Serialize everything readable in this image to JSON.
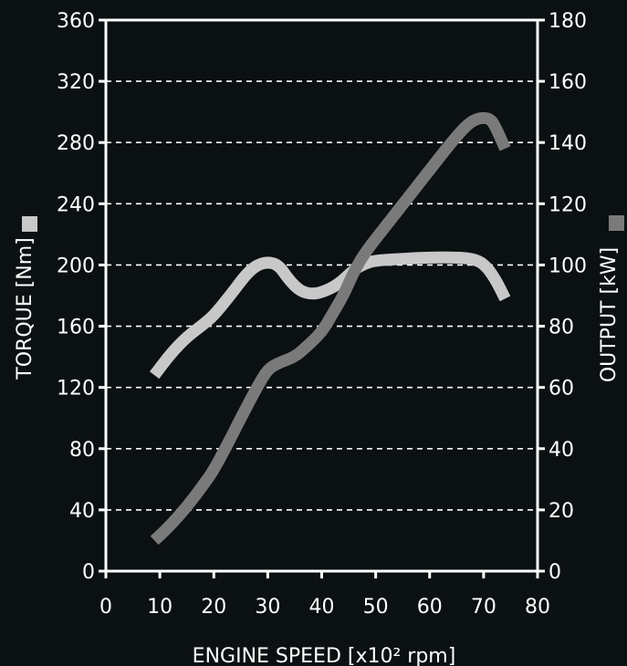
{
  "chart_data": {
    "type": "line",
    "title": "",
    "xlabel": "ENGINE SPEED [x10² rpm]",
    "ylabel_left": "TORQUE [Nm]",
    "ylabel_right": "OUTPUT [kW]",
    "xlim": [
      0,
      80
    ],
    "ylim_left": [
      0,
      360
    ],
    "ylim_right": [
      0,
      180
    ],
    "x_ticks": [
      0,
      10,
      20,
      30,
      40,
      50,
      60,
      70,
      80
    ],
    "y_ticks_left": [
      0,
      40,
      80,
      120,
      160,
      200,
      240,
      280,
      320,
      360
    ],
    "y_ticks_right": [
      0,
      20,
      40,
      60,
      80,
      100,
      120,
      140,
      160,
      180
    ],
    "grid": "horizontal dashed",
    "colors": {
      "background": "#0b1012",
      "axes": "#ffffff",
      "grid": "#ffffff",
      "torque": "#c8c8c8",
      "output": "#7a7a7a"
    },
    "series": [
      {
        "axis": "left",
        "color": "#c8c8c8",
        "points": [
          [
            9,
            128
          ],
          [
            12,
            142
          ],
          [
            15,
            153
          ],
          [
            18,
            161
          ],
          [
            20,
            167
          ],
          [
            23,
            180
          ],
          [
            26,
            194
          ],
          [
            28,
            200
          ],
          [
            30,
            202
          ],
          [
            32,
            200
          ],
          [
            34,
            190
          ],
          [
            36,
            183
          ],
          [
            38,
            181
          ],
          [
            40,
            182
          ],
          [
            43,
            187
          ],
          [
            46,
            197
          ],
          [
            48,
            201
          ],
          [
            50,
            203
          ],
          [
            55,
            204
          ],
          [
            60,
            205
          ],
          [
            65,
            205
          ],
          [
            68,
            204
          ],
          [
            70,
            201
          ],
          [
            72,
            192
          ],
          [
            74,
            178
          ]
        ]
      },
      {
        "axis": "right",
        "color": "#7a7a7a",
        "points": [
          [
            9,
            10
          ],
          [
            12,
            15
          ],
          [
            15,
            21
          ],
          [
            18,
            28
          ],
          [
            20,
            33
          ],
          [
            23,
            43
          ],
          [
            25,
            50
          ],
          [
            28,
            60
          ],
          [
            30,
            66
          ],
          [
            32,
            68
          ],
          [
            35,
            70
          ],
          [
            37,
            73
          ],
          [
            40,
            78
          ],
          [
            42,
            84
          ],
          [
            44,
            90
          ],
          [
            46,
            98
          ],
          [
            48,
            104
          ],
          [
            52,
            113
          ],
          [
            56,
            122
          ],
          [
            60,
            131
          ],
          [
            64,
            140
          ],
          [
            67,
            146
          ],
          [
            69,
            148
          ],
          [
            71,
            148
          ],
          [
            72,
            146
          ],
          [
            74,
            138
          ]
        ]
      }
    ],
    "legend_markers": {
      "left": "#c8c8c8",
      "right": "#7a7a7a"
    }
  }
}
